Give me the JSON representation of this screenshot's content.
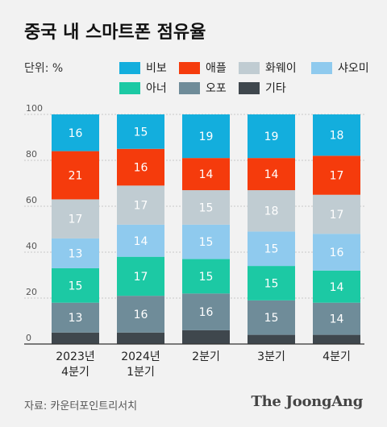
{
  "header": {
    "title": "중국 내 스마트폰 점유율",
    "unit": "단위: %"
  },
  "footer": {
    "source": "자료: 카운터포인트리서치",
    "logo": "The JoongAng"
  },
  "chart_data": {
    "type": "bar",
    "stacked": true,
    "categories": [
      [
        "2023년",
        "4분기"
      ],
      [
        "2024년",
        "1분기"
      ],
      [
        "2분기"
      ],
      [
        "3분기"
      ],
      [
        "4분기"
      ]
    ],
    "ylim": [
      0,
      100
    ],
    "yticks": [
      0,
      20,
      40,
      60,
      80,
      100
    ],
    "legend_placement": "top",
    "series": [
      {
        "name": "기타",
        "color": "#3f474d",
        "values": [
          5,
          5,
          6,
          4,
          4
        ]
      },
      {
        "name": "오포",
        "color": "#6f8c99",
        "values": [
          13,
          16,
          16,
          15,
          14
        ]
      },
      {
        "name": "아너",
        "color": "#1cc9a4",
        "values": [
          15,
          17,
          15,
          15,
          14
        ]
      },
      {
        "name": "샤오미",
        "color": "#8fcaee",
        "values": [
          13,
          14,
          15,
          15,
          16
        ]
      },
      {
        "name": "화웨이",
        "color": "#c0ccd2",
        "values": [
          17,
          17,
          15,
          18,
          17
        ]
      },
      {
        "name": "애플",
        "color": "#f53b0c",
        "values": [
          21,
          16,
          14,
          14,
          17
        ]
      },
      {
        "name": "비보",
        "color": "#13aedd",
        "values": [
          16,
          15,
          19,
          19,
          18
        ]
      }
    ],
    "data_labels": [
      [
        null,
        null,
        null,
        null,
        null
      ],
      [
        "13",
        "16",
        "16",
        "15",
        "14"
      ],
      [
        "15",
        "17",
        "15",
        "15",
        "14"
      ],
      [
        "13",
        "14",
        "15",
        "15",
        "16"
      ],
      [
        "17",
        "17",
        "15",
        "18",
        "17"
      ],
      [
        "21",
        "16",
        "14",
        "14",
        "17"
      ],
      [
        "16",
        "15",
        "19",
        "19",
        "18"
      ]
    ],
    "legend_order": [
      "비보",
      "애플",
      "화웨이",
      "샤오미",
      "아너",
      "오포",
      "기타"
    ]
  }
}
